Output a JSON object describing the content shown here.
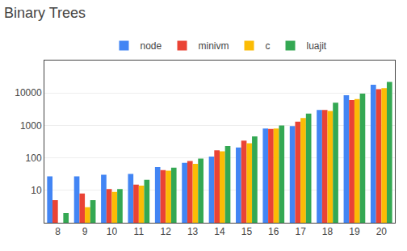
{
  "chart_data": {
    "type": "bar",
    "title": "Binary Trees",
    "categories": [
      8,
      9,
      10,
      11,
      12,
      13,
      14,
      15,
      16,
      17,
      18,
      19,
      20
    ],
    "series": [
      {
        "name": "node",
        "color": "#4285F4",
        "values": [
          27,
          27,
          30,
          32,
          52,
          70,
          110,
          210,
          800,
          950,
          3000,
          8500,
          18000
        ]
      },
      {
        "name": "minivm",
        "color": "#EA4335",
        "values": [
          5,
          8,
          11,
          15,
          42,
          80,
          170,
          340,
          780,
          1300,
          3000,
          6000,
          13000
        ]
      },
      {
        "name": "c",
        "color": "#FBBC05",
        "values": [
          1,
          3,
          9,
          14,
          40,
          65,
          160,
          280,
          800,
          1700,
          2800,
          6500,
          14000
        ]
      },
      {
        "name": "luajit",
        "color": "#34A853",
        "values": [
          2,
          5,
          11,
          21,
          50,
          95,
          230,
          460,
          1000,
          2300,
          5000,
          9500,
          22000
        ]
      }
    ],
    "log": "y",
    "ylim": [
      1,
      100000
    ],
    "yticks": [
      10,
      100,
      1000,
      10000
    ],
    "grid": true,
    "legend": "top"
  }
}
